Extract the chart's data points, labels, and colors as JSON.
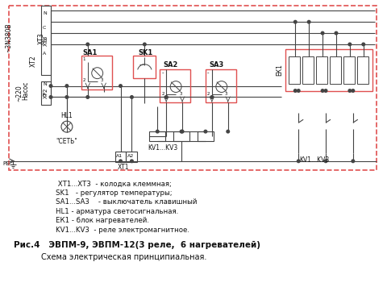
{
  "fig_width": 4.8,
  "fig_height": 3.56,
  "dpi": 100,
  "bg_color": "#ffffff",
  "line_color": "#444444",
  "red_color": "#e05050",
  "legend_lines": [
    " ХТ1...ХТ3  - колодка клеммная;",
    "SK1   - регулятор температуры;",
    "SA1...SA3    - выключатель клавишный",
    "HL1 - арматура светосигнальная.",
    "ЕК1 - блок нагревателей.",
    "KV1...KV3  - реле электромагнитное."
  ],
  "caption_line1": "Рис.4   ЭВПМ-9, ЭВПМ-12(3 реле,  6 нагревателей)",
  "caption_line2": "Схема электрическая принципиальная."
}
